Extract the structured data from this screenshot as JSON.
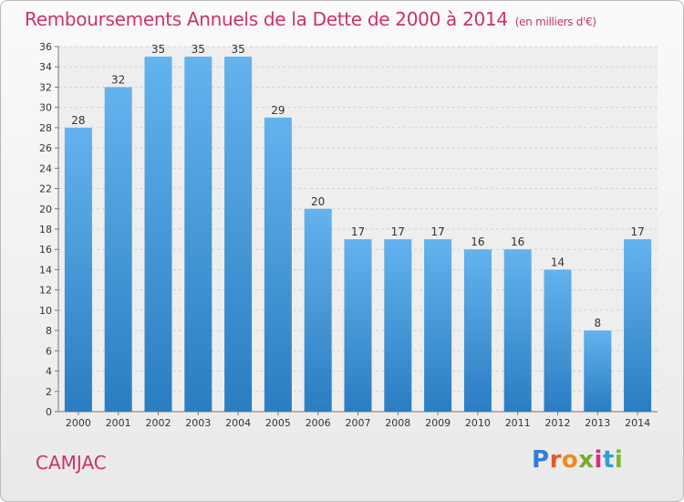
{
  "title": "Remboursements Annuels de la Dette de 2000 à 2014",
  "unit": "(en milliers d'€)",
  "place": "CAMJAC",
  "logo": "Proxiti",
  "colors": {
    "title": "#c8336d",
    "bar_top": "#62b3ee",
    "bar_bottom": "#2a7dc1",
    "logo_letters": [
      "#2f7fd6",
      "#e25a2a",
      "#f08a1c",
      "#7aa832",
      "#d12f86",
      "#2f9fd6",
      "#79b82e"
    ]
  },
  "chart_data": {
    "type": "bar",
    "categories": [
      "2000",
      "2001",
      "2002",
      "2003",
      "2004",
      "2005",
      "2006",
      "2007",
      "2008",
      "2009",
      "2010",
      "2011",
      "2012",
      "2013",
      "2014"
    ],
    "values": [
      28,
      32,
      35,
      35,
      35,
      29,
      20,
      17,
      17,
      17,
      16,
      16,
      14,
      8,
      17
    ],
    "ylim": [
      0,
      36
    ],
    "yticks": [
      0,
      2,
      4,
      6,
      8,
      10,
      12,
      14,
      16,
      18,
      20,
      22,
      24,
      26,
      28,
      30,
      32,
      34,
      36
    ],
    "grid": true,
    "data_labels": true
  }
}
